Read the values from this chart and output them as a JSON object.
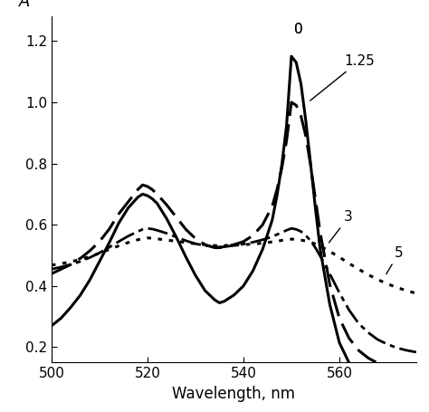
{
  "xlabel": "Wavelength, nm",
  "ylabel": "A",
  "xlim": [
    500,
    576
  ],
  "ylim": [
    0.15,
    1.28
  ],
  "yticks": [
    0.2,
    0.4,
    0.6,
    0.8,
    1.0,
    1.2
  ],
  "xticks": [
    500,
    520,
    540,
    560
  ],
  "curves": {
    "0": {
      "style": "solid",
      "linewidth": 2.2,
      "x": [
        500,
        502,
        504,
        506,
        508,
        510,
        512,
        514,
        516,
        518,
        519,
        520,
        521,
        522,
        524,
        526,
        528,
        530,
        532,
        534,
        535,
        536,
        538,
        540,
        542,
        544,
        546,
        547,
        548,
        549,
        550,
        551,
        552,
        553,
        554,
        555,
        556,
        558,
        560,
        562,
        564,
        566,
        568,
        570,
        572,
        574,
        576
      ],
      "y": [
        0.27,
        0.295,
        0.33,
        0.37,
        0.42,
        0.48,
        0.54,
        0.605,
        0.655,
        0.69,
        0.7,
        0.695,
        0.685,
        0.67,
        0.62,
        0.56,
        0.495,
        0.435,
        0.385,
        0.355,
        0.345,
        0.35,
        0.37,
        0.4,
        0.45,
        0.52,
        0.615,
        0.695,
        0.795,
        0.925,
        1.15,
        1.13,
        1.06,
        0.94,
        0.8,
        0.655,
        0.52,
        0.34,
        0.215,
        0.15,
        0.11,
        0.085,
        0.068,
        0.057,
        0.048,
        0.042,
        0.038
      ]
    },
    "1.25": {
      "style": "dashed",
      "linewidth": 2.2,
      "x": [
        500,
        502,
        504,
        506,
        508,
        510,
        512,
        514,
        516,
        518,
        519,
        520,
        521,
        522,
        524,
        526,
        528,
        530,
        532,
        534,
        535,
        536,
        538,
        540,
        542,
        544,
        546,
        547,
        548,
        549,
        550,
        551,
        552,
        553,
        554,
        555,
        556,
        558,
        560,
        562,
        564,
        566,
        568,
        570,
        572,
        574,
        576
      ],
      "y": [
        0.44,
        0.455,
        0.47,
        0.49,
        0.515,
        0.545,
        0.585,
        0.635,
        0.675,
        0.715,
        0.73,
        0.725,
        0.715,
        0.7,
        0.665,
        0.625,
        0.585,
        0.555,
        0.535,
        0.525,
        0.525,
        0.528,
        0.535,
        0.545,
        0.565,
        0.6,
        0.66,
        0.715,
        0.785,
        0.875,
        1.0,
        0.99,
        0.955,
        0.89,
        0.795,
        0.685,
        0.575,
        0.405,
        0.295,
        0.23,
        0.19,
        0.165,
        0.148,
        0.138,
        0.13,
        0.124,
        0.12
      ]
    },
    "3": {
      "style": "dashdot",
      "linewidth": 2.0,
      "x": [
        500,
        502,
        504,
        506,
        508,
        510,
        512,
        514,
        516,
        518,
        519,
        520,
        521,
        522,
        524,
        526,
        528,
        530,
        532,
        534,
        535,
        536,
        538,
        540,
        542,
        544,
        546,
        547,
        548,
        549,
        550,
        551,
        552,
        553,
        554,
        555,
        556,
        558,
        560,
        562,
        564,
        566,
        568,
        570,
        572,
        574,
        576
      ],
      "y": [
        0.455,
        0.462,
        0.47,
        0.48,
        0.493,
        0.508,
        0.526,
        0.545,
        0.563,
        0.578,
        0.585,
        0.588,
        0.586,
        0.582,
        0.572,
        0.56,
        0.548,
        0.538,
        0.532,
        0.528,
        0.527,
        0.528,
        0.532,
        0.537,
        0.543,
        0.551,
        0.561,
        0.568,
        0.575,
        0.582,
        0.588,
        0.585,
        0.578,
        0.565,
        0.548,
        0.525,
        0.498,
        0.44,
        0.378,
        0.322,
        0.278,
        0.248,
        0.225,
        0.21,
        0.198,
        0.19,
        0.184
      ]
    },
    "5": {
      "style": "dotted",
      "linewidth": 2.2,
      "x": [
        500,
        502,
        504,
        506,
        508,
        510,
        512,
        514,
        516,
        518,
        519,
        520,
        521,
        522,
        524,
        526,
        528,
        530,
        532,
        534,
        535,
        536,
        538,
        540,
        542,
        544,
        546,
        547,
        548,
        549,
        550,
        551,
        552,
        553,
        554,
        555,
        556,
        558,
        560,
        562,
        564,
        566,
        568,
        570,
        572,
        574,
        576
      ],
      "y": [
        0.468,
        0.473,
        0.479,
        0.487,
        0.496,
        0.507,
        0.519,
        0.531,
        0.542,
        0.551,
        0.555,
        0.557,
        0.556,
        0.554,
        0.55,
        0.546,
        0.542,
        0.538,
        0.535,
        0.532,
        0.531,
        0.532,
        0.533,
        0.535,
        0.537,
        0.54,
        0.544,
        0.546,
        0.549,
        0.551,
        0.553,
        0.552,
        0.55,
        0.547,
        0.543,
        0.537,
        0.53,
        0.513,
        0.494,
        0.474,
        0.455,
        0.437,
        0.421,
        0.407,
        0.395,
        0.385,
        0.376
      ]
    }
  },
  "background_color": "#ffffff"
}
